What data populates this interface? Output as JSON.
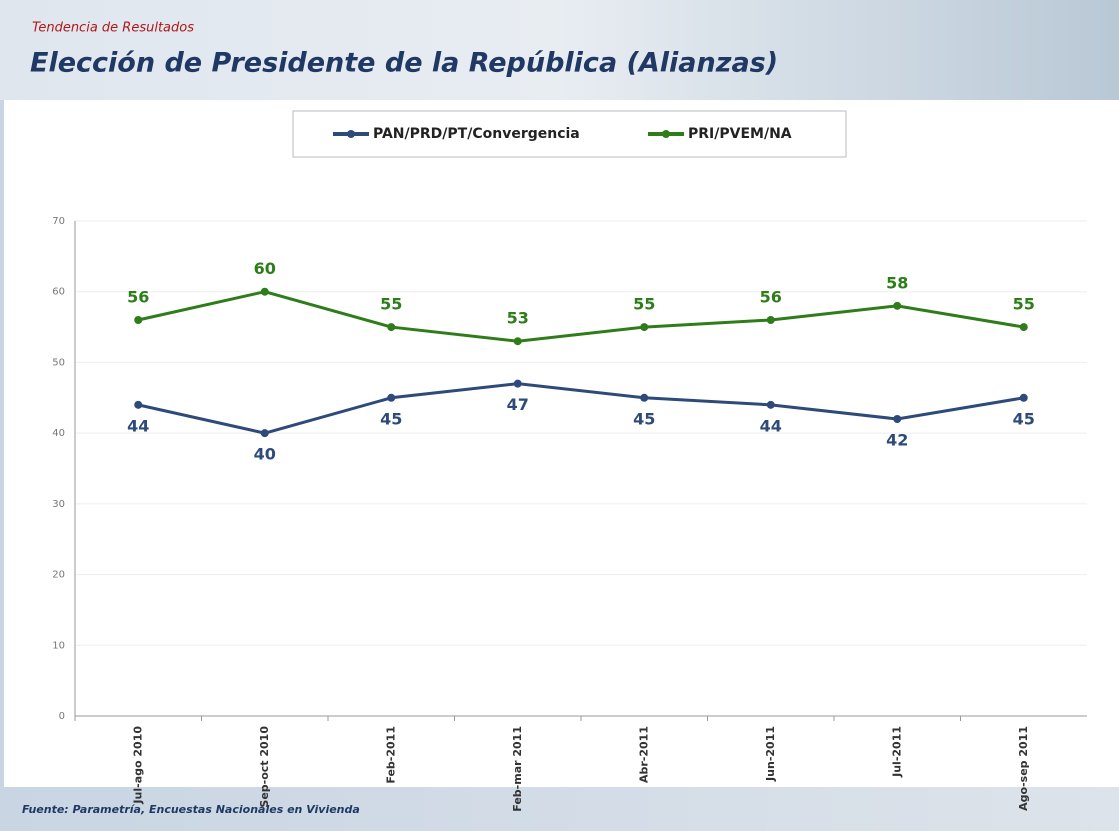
{
  "header": {
    "subtitle": "Tendencia de Resultados",
    "title": "Elección de Presidente de la República (Alianzas)"
  },
  "chart_data": {
    "type": "line",
    "categories": [
      "Jul-ago 2010",
      "Sep-oct 2010",
      "Feb-2011",
      "Feb-mar 2011",
      "Abr-2011",
      "Jun-2011",
      "Jul-2011",
      "Ago-sep 2011"
    ],
    "series": [
      {
        "name": "PAN/PRD/PT/Convergencia",
        "color": "#2e4a7a",
        "values": [
          44,
          40,
          45,
          47,
          45,
          44,
          42,
          45
        ]
      },
      {
        "name": "PRI/PVEM/NA",
        "color": "#2e7d1a",
        "values": [
          56,
          60,
          55,
          53,
          55,
          56,
          58,
          55
        ]
      }
    ],
    "ylim": [
      0,
      70
    ],
    "yticks": [
      0,
      10,
      20,
      30,
      40,
      50,
      60,
      70
    ],
    "grid": true,
    "legend": "top"
  },
  "footer": {
    "source": "Fuente: Parametría, Encuestas Nacionales en Vivienda"
  }
}
